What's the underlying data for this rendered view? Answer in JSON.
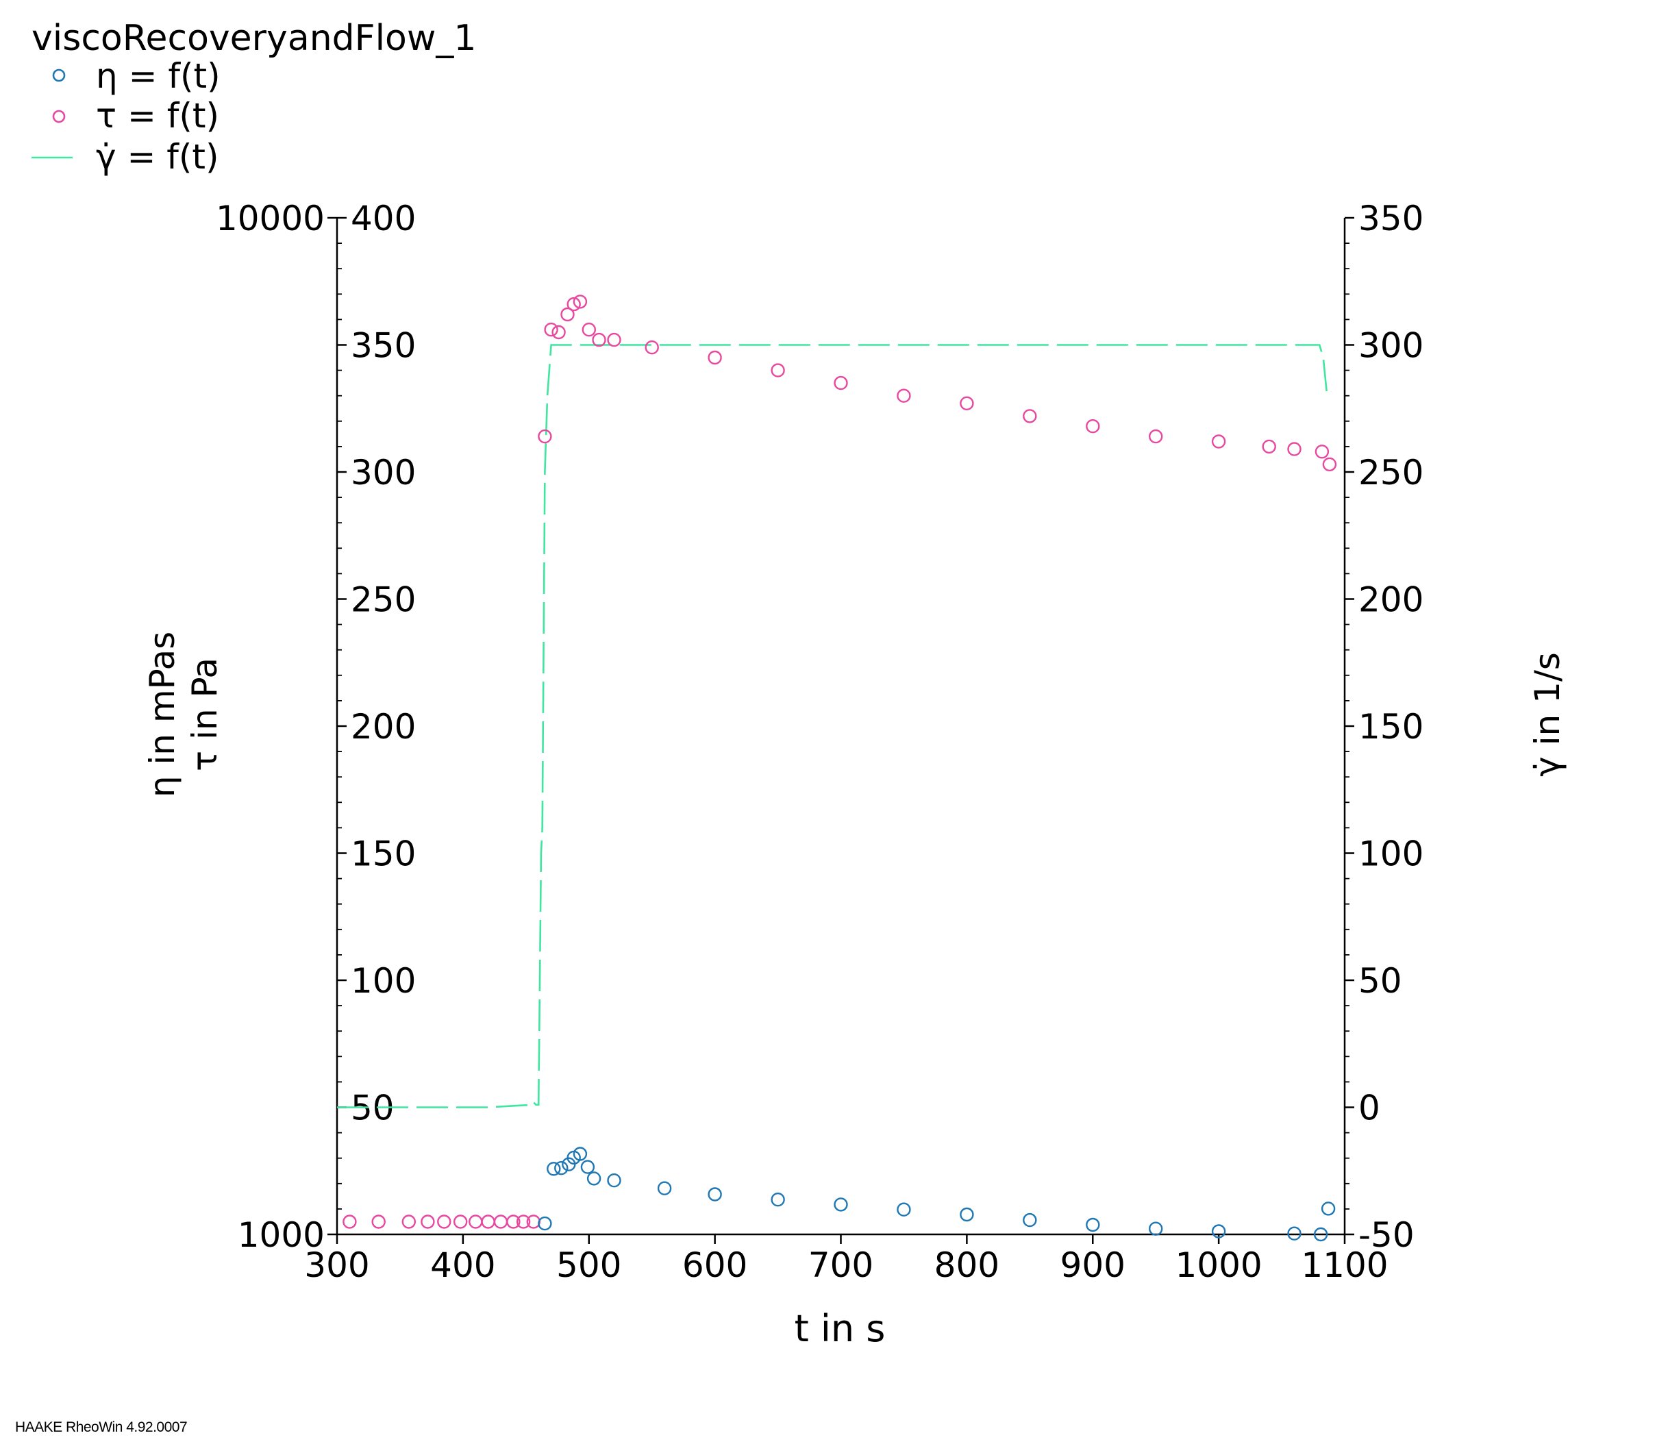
{
  "chart_data": {
    "type": "scatter",
    "title": "viscoRecoveryandFlow_1",
    "legend": [
      {
        "label": "η = f(t)",
        "marker": "circle",
        "color": "#1f77b4"
      },
      {
        "label": "τ = f(t)",
        "marker": "circle",
        "color": "#e8489f"
      },
      {
        "label": "γ̇ = f(t)",
        "marker": "dash-line",
        "color": "#3ee6a0"
      }
    ],
    "legend_position": "top-left",
    "xlabel": "t in s",
    "ylabel_eta": "η in mPas",
    "ylabel_tau": "τ in Pa",
    "ylabel_right": "γ̇ in 1/s",
    "xlim": [
      300,
      1100
    ],
    "x_ticks": [
      "300",
      "400",
      "500",
      "600",
      "700",
      "800",
      "900",
      "1000",
      "1100"
    ],
    "eta_axis": {
      "scale": "log",
      "range": [
        1000,
        10000
      ],
      "tick_labels": [
        "1000",
        "10000"
      ]
    },
    "tau_axis": {
      "range": [
        0,
        400
      ],
      "tick_labels": [
        "50",
        "100",
        "150",
        "200",
        "250",
        "300",
        "350",
        "400"
      ]
    },
    "right_axis": {
      "range": [
        -50,
        350
      ],
      "tick_labels": [
        "-50",
        "0",
        "50",
        "100",
        "150",
        "200",
        "250",
        "300",
        "350"
      ]
    },
    "series": [
      {
        "name": "η = f(t)",
        "color": "#1f77b4",
        "axis": "eta",
        "x": [
          465,
          472,
          478,
          484,
          488,
          493,
          499,
          504,
          520,
          560,
          600,
          650,
          700,
          750,
          800,
          850,
          900,
          950,
          1000,
          1060,
          1081,
          1087
        ],
        "y": [
          1025,
          1160,
          1162,
          1172,
          1190,
          1200,
          1165,
          1135,
          1130,
          1110,
          1095,
          1082,
          1070,
          1058,
          1046,
          1033,
          1022,
          1013,
          1007,
          1002,
          1000,
          1060
        ]
      },
      {
        "name": "τ = f(t)",
        "color": "#e8489f",
        "axis": "tau",
        "x": [
          310,
          333,
          357,
          372,
          385,
          398,
          410,
          420,
          430,
          440,
          448,
          456,
          465,
          470,
          476,
          483,
          488,
          493,
          500,
          508,
          520,
          550,
          600,
          650,
          700,
          750,
          800,
          850,
          900,
          950,
          1000,
          1040,
          1060,
          1082,
          1088
        ],
        "y": [
          5,
          5,
          5,
          5,
          5,
          5,
          5,
          5,
          5,
          5,
          5,
          5,
          314,
          356,
          355,
          362,
          366,
          367,
          356,
          352,
          352,
          349,
          345,
          340,
          335,
          330,
          327,
          322,
          318,
          314,
          312,
          310,
          309,
          308,
          303
        ]
      },
      {
        "name": "γ̇ = f(t)",
        "color": "#3ee6a0",
        "axis": "right",
        "style": "dashed",
        "x": [
          300,
          420,
          455,
          456,
          458,
          460,
          462,
          463,
          465,
          467,
          470,
          1080,
          1083,
          1086
        ],
        "y": [
          0,
          0,
          1,
          2,
          1,
          1,
          100,
          110,
          250,
          280,
          300,
          300,
          295,
          280
        ]
      }
    ]
  },
  "footer": {
    "text": "HAAKE RheoWin 4.92.0007"
  }
}
